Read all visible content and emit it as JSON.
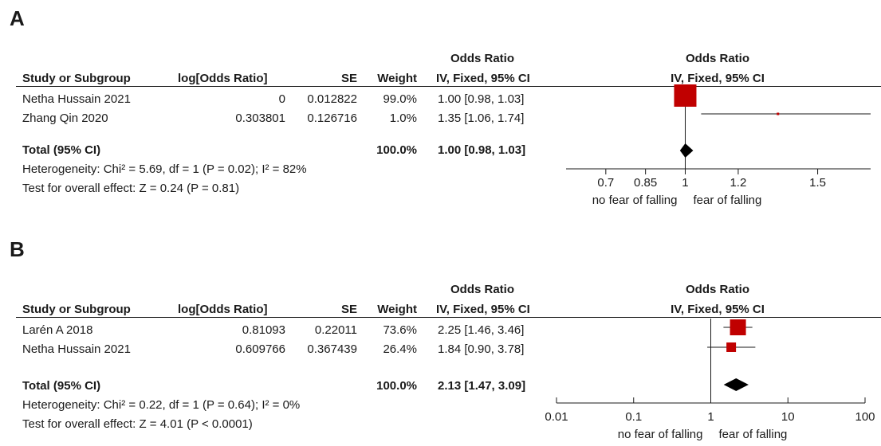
{
  "chart_data": [
    {
      "type": "forest",
      "panel_label": "A",
      "headers": {
        "study": "Study or Subgroup",
        "log_or": "log[Odds Ratio]",
        "se": "SE",
        "weight": "Weight",
        "or_title": "Odds Ratio",
        "or_method": "IV, Fixed, 95% CI",
        "plot_title": "Odds Ratio",
        "plot_method": "IV, Fixed, 95% CI"
      },
      "studies": [
        {
          "name": "Netha Hussain 2021",
          "log_or": "0",
          "se": "0.012822",
          "weight": "99.0%",
          "ci_text": "1.00 [0.98, 1.03]",
          "or": 1.0,
          "lower": 0.98,
          "upper": 1.03,
          "weight_value": 99.0
        },
        {
          "name": "Zhang Qin 2020",
          "log_or": "0.303801",
          "se": "0.126716",
          "weight": "1.0%",
          "ci_text": "1.35 [1.06, 1.74]",
          "or": 1.35,
          "lower": 1.06,
          "upper": 1.74,
          "weight_value": 1.0
        }
      ],
      "total": {
        "label": "Total (95% CI)",
        "weight": "100.0%",
        "ci_text": "1.00 [0.98, 1.03]",
        "or": 1.0,
        "lower": 0.98,
        "upper": 1.03
      },
      "heterogeneity": "Heterogeneity: Chi² = 5.69, df = 1 (P = 0.02); I² = 82%",
      "overall_effect": "Test for overall effect: Z = 0.24 (P = 0.81)",
      "axis": {
        "scale": "linear",
        "range": [
          0.55,
          1.7
        ],
        "ticks": [
          0.7,
          0.85,
          1,
          1.2,
          1.5
        ],
        "tick_labels": [
          "0.7",
          "0.85",
          "1",
          "1.2",
          "1.5"
        ]
      },
      "favours_left": "no fear of falling",
      "favours_right": "fear of falling"
    },
    {
      "type": "forest",
      "panel_label": "B",
      "headers": {
        "study": "Study or Subgroup",
        "log_or": "log[Odds Ratio]",
        "se": "SE",
        "weight": "Weight",
        "or_title": "Odds Ratio",
        "or_method": "IV, Fixed, 95% CI",
        "plot_title": "Odds Ratio",
        "plot_method": "IV, Fixed, 95% CI"
      },
      "studies": [
        {
          "name": "Larén A 2018",
          "log_or": "0.81093",
          "se": "0.22011",
          "weight": "73.6%",
          "ci_text": "2.25 [1.46, 3.46]",
          "or": 2.25,
          "lower": 1.46,
          "upper": 3.46,
          "weight_value": 73.6
        },
        {
          "name": "Netha Hussain 2021",
          "log_or": "0.609766",
          "se": "0.367439",
          "weight": "26.4%",
          "ci_text": "1.84 [0.90, 3.78]",
          "or": 1.84,
          "lower": 0.9,
          "upper": 3.78,
          "weight_value": 26.4
        }
      ],
      "total": {
        "label": "Total (95% CI)",
        "weight": "100.0%",
        "ci_text": "2.13 [1.47, 3.09]",
        "or": 2.13,
        "lower": 1.47,
        "upper": 3.09
      },
      "heterogeneity": "Heterogeneity: Chi² = 0.22, df = 1 (P = 0.64); I² = 0%",
      "overall_effect": "Test for overall effect: Z = 4.01 (P < 0.0001)",
      "axis": {
        "scale": "log",
        "range": [
          0.01,
          100
        ],
        "ticks": [
          0.01,
          0.1,
          1,
          10,
          100
        ],
        "tick_labels": [
          "0.01",
          "0.1",
          "1",
          "10",
          "100"
        ]
      },
      "favours_left": "no fear of falling",
      "favours_right": "fear of falling"
    }
  ],
  "colors": {
    "study_marker": "#c00000",
    "diamond": "#000000",
    "text": "#1a1a1a"
  }
}
